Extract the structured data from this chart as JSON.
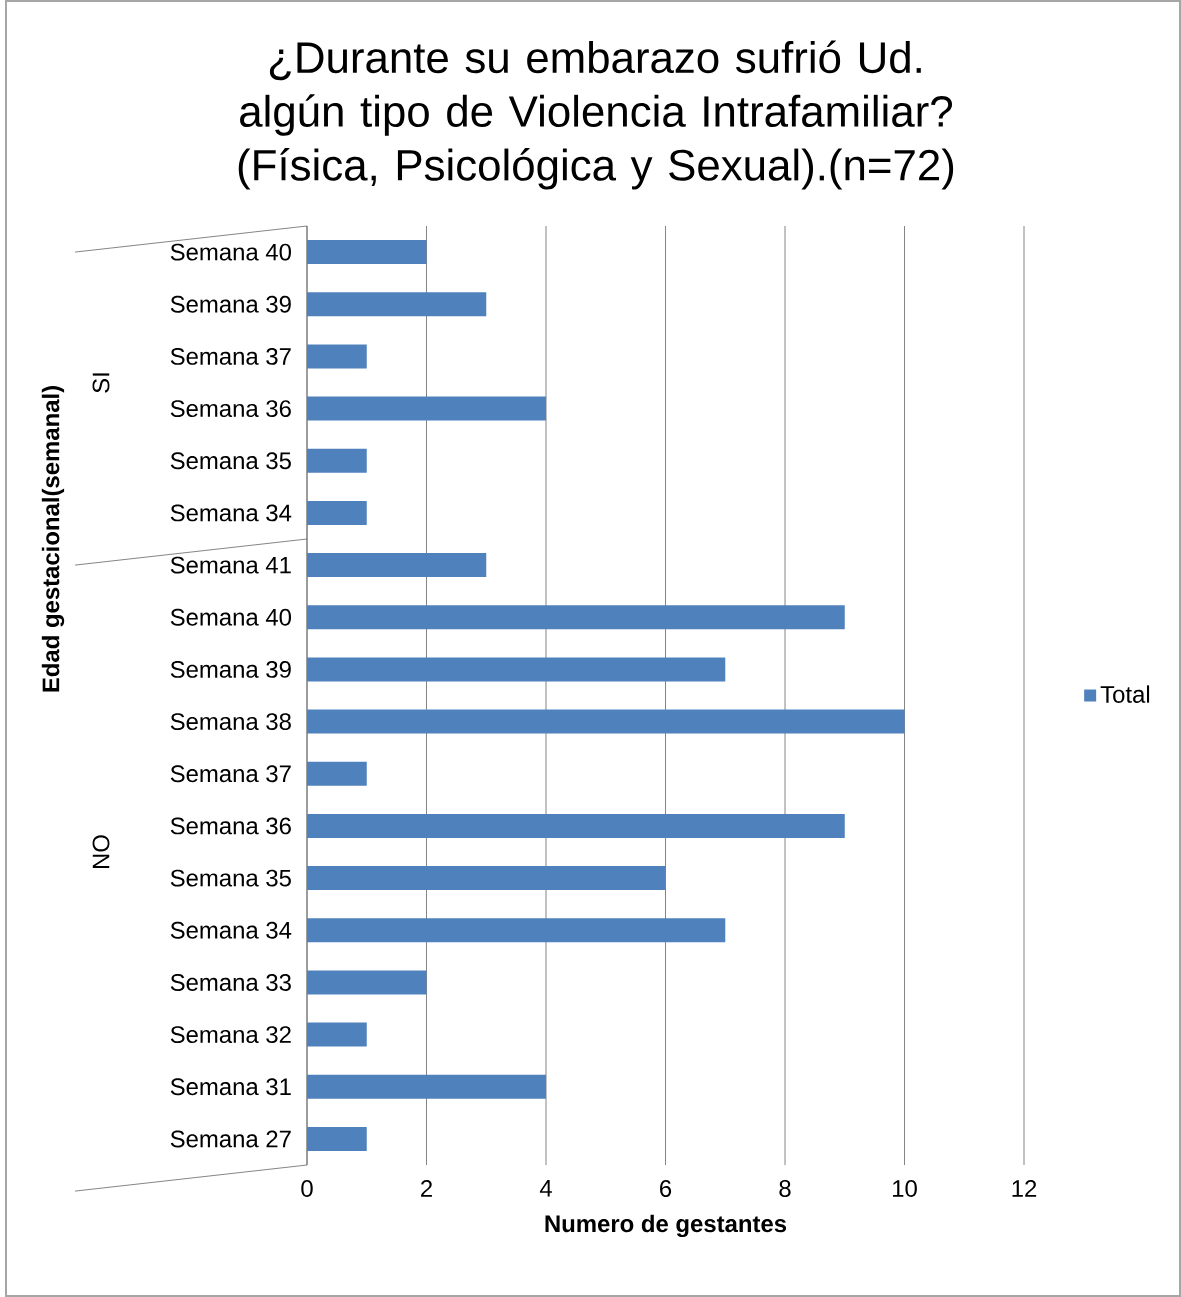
{
  "chart_data": {
    "type": "bar",
    "orientation": "horizontal",
    "title": "¿Durante su embarazo sufrió Ud. algún tipo de Violencia Intrafamiliar? (Física, Psicológica y Sexual).(n=72)",
    "xlabel": "Numero de gestantes",
    "ylabel": "Edad gestacional(semanal)",
    "categories": [
      "Semana 40",
      "Semana 39",
      "Semana 37",
      "Semana 36",
      "Semana 35",
      "Semana 34",
      "Semana 41",
      "Semana 40",
      "Semana 39",
      "Semana 38",
      "Semana 37",
      "Semana 36",
      "Semana 35",
      "Semana 34",
      "Semana 33",
      "Semana 32",
      "Semana 31",
      "Semana 27"
    ],
    "series": [
      {
        "name": "Total",
        "color": "#4f81bd",
        "values": [
          2,
          3,
          1,
          4,
          1,
          1,
          3,
          9,
          7,
          10,
          1,
          9,
          6,
          7,
          2,
          1,
          4,
          1
        ]
      }
    ],
    "annotations": [
      "SI",
      "NO"
    ],
    "xlim": [
      0,
      12
    ],
    "xticks": [
      0,
      2,
      4,
      6,
      8,
      10,
      12
    ],
    "grid": "x",
    "legend": "right"
  }
}
